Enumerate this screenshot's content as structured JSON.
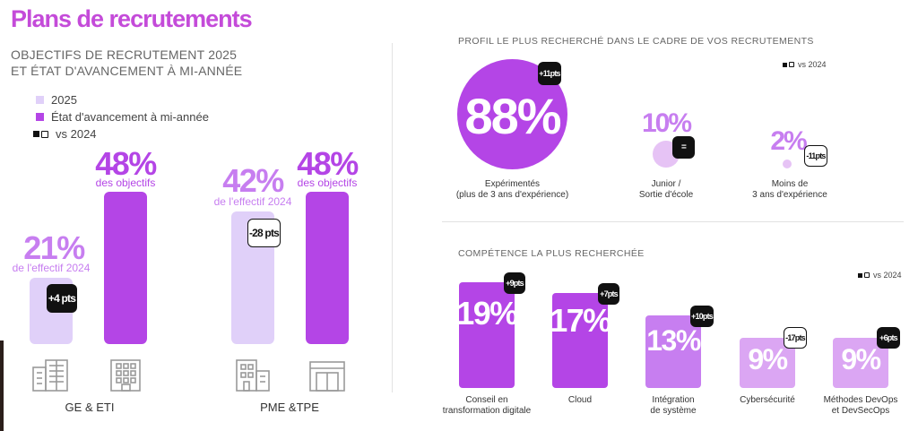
{
  "header": {
    "title": "Plans de recrutements",
    "subtitle_line1": "OBJECTIFS DE RECRUTEMENT 2025",
    "subtitle_line2": "ET ÉTAT D'AVANCEMENT À MI-ANNÉE"
  },
  "legend": {
    "item1": "2025",
    "item2": "État d'avancement à mi-année",
    "item3": "vs 2024"
  },
  "colors": {
    "purple": "#b445e6",
    "light_purple": "#e0d0f9",
    "title_pink": "#c44bd9",
    "mid_purple": "#c77ef0",
    "light_circle": "#e6c3f5",
    "black": "#111111"
  },
  "chart_data": [
    {
      "type": "bar",
      "title": "OBJECTIFS DE RECRUTEMENT 2025 ET ÉTAT D'AVANCEMENT À MI-ANNÉE",
      "categories": [
        "GE & ETI",
        "PME &TPE"
      ],
      "series": [
        {
          "name": "2025",
          "values": [
            21,
            42
          ],
          "value_labels": [
            "21%",
            "42%"
          ],
          "sublabels": [
            "de l'effectif 2024",
            "de l'effectif 2024"
          ]
        },
        {
          "name": "État d'avancement à mi-année",
          "values": [
            48,
            48
          ],
          "value_labels": [
            "48%",
            "48%"
          ],
          "sublabels": [
            "des objectifs",
            "des objectifs"
          ]
        }
      ],
      "vs_2024": [
        "+4 pts",
        "-28 pts"
      ]
    },
    {
      "type": "bubble",
      "title": "PROFIL LE PLUS RECHERCHÉ DANS LE CADRE DE VOS RECRUTEMENTS",
      "categories": [
        "Expérimentés (plus de 3 ans d'expérience)",
        "Junior / Sortie d'école",
        "Moins de 3 ans d'expérience"
      ],
      "values": [
        88,
        10,
        2
      ],
      "value_labels": [
        "88%",
        "10%",
        "2%"
      ],
      "vs_2024": [
        "+11pts",
        "=",
        "-11pts"
      ],
      "legend": "vs 2024"
    },
    {
      "type": "bar",
      "title": "COMPÉTENCE LA PLUS RECHERCHÉE",
      "categories": [
        "Conseil en transformation digitale",
        "Cloud",
        "Intégration de système",
        "Cybersécurité",
        "Méthodes DevOps et DevSecOps"
      ],
      "values": [
        19,
        17,
        13,
        9,
        9
      ],
      "value_labels": [
        "19%",
        "17%",
        "13%",
        "9%",
        "9%"
      ],
      "vs_2024": [
        "+9pts",
        "+7pts",
        "+10pts",
        "-17pts",
        "+6pts"
      ],
      "legend": "vs 2024"
    }
  ],
  "left": {
    "groups": [
      {
        "label": "GE & ETI",
        "icon1": "office-building-icon",
        "icon2": "office-tower-icon"
      },
      {
        "label": "PME &TPE",
        "icon1": "small-building-icon",
        "icon2": "shop-front-icon"
      }
    ]
  },
  "profile": {
    "line1": [
      "Expérimentés",
      "Junior /",
      "Moins de"
    ],
    "line2": [
      "(plus de 3 ans d'expérience)",
      "Sortie d'école",
      "3 ans d'expérience"
    ]
  },
  "competence": {
    "line1": [
      "Conseil en",
      "Cloud",
      "Intégration",
      "Cybersécurité",
      "Méthodes DevOps"
    ],
    "line2": [
      "transformation digitale",
      "",
      "de système",
      "",
      "et DevSecOps"
    ]
  }
}
